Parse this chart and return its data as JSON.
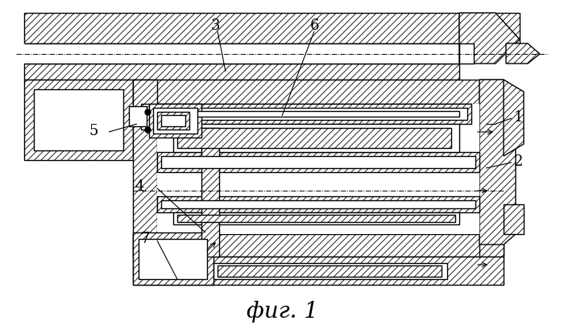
{
  "title": "фиг. 1",
  "bg_color": "#ffffff",
  "fig_width": 7.0,
  "fig_height": 4.09,
  "hatch_lw": 0.6,
  "line_lw": 1.0
}
